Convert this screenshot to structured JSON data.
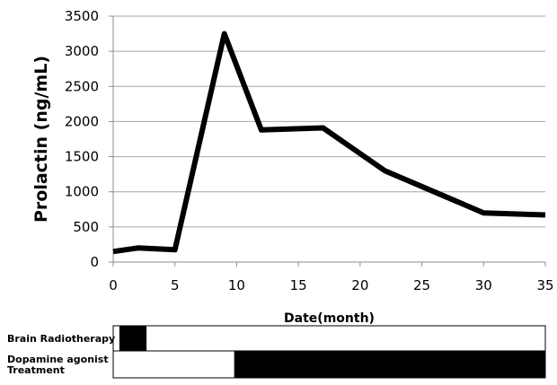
{
  "chart_data": {
    "type": "line",
    "xlabel": "Date(month)",
    "ylabel": "Prolactin (ng/mL)",
    "xlim": [
      0,
      35
    ],
    "ylim": [
      0,
      3500
    ],
    "x_ticks": [
      "0",
      "5",
      "10",
      "15",
      "20",
      "25",
      "30",
      "35"
    ],
    "y_ticks": [
      "0",
      "500",
      "1000",
      "1500",
      "2000",
      "2500",
      "3000",
      "3500"
    ],
    "grid": "horizontal",
    "series": [
      {
        "color": "#000000",
        "points": [
          {
            "x": 0,
            "y": 150
          },
          {
            "x": 2,
            "y": 200
          },
          {
            "x": 5,
            "y": 175
          },
          {
            "x": 9,
            "y": 3250
          },
          {
            "x": 12,
            "y": 1880
          },
          {
            "x": 17,
            "y": 1910
          },
          {
            "x": 22,
            "y": 1300
          },
          {
            "x": 30,
            "y": 700
          },
          {
            "x": 35,
            "y": 670
          }
        ]
      }
    ],
    "treatments": [
      {
        "label_lines": [
          "Brain Radiotherapy"
        ],
        "segments": [
          {
            "start": 0.5,
            "end": 2.7
          }
        ]
      },
      {
        "label_lines": [
          "Dopamine agonist",
          "Treatment"
        ],
        "segments": [
          {
            "start": 9.8,
            "end": 35
          }
        ]
      }
    ]
  }
}
